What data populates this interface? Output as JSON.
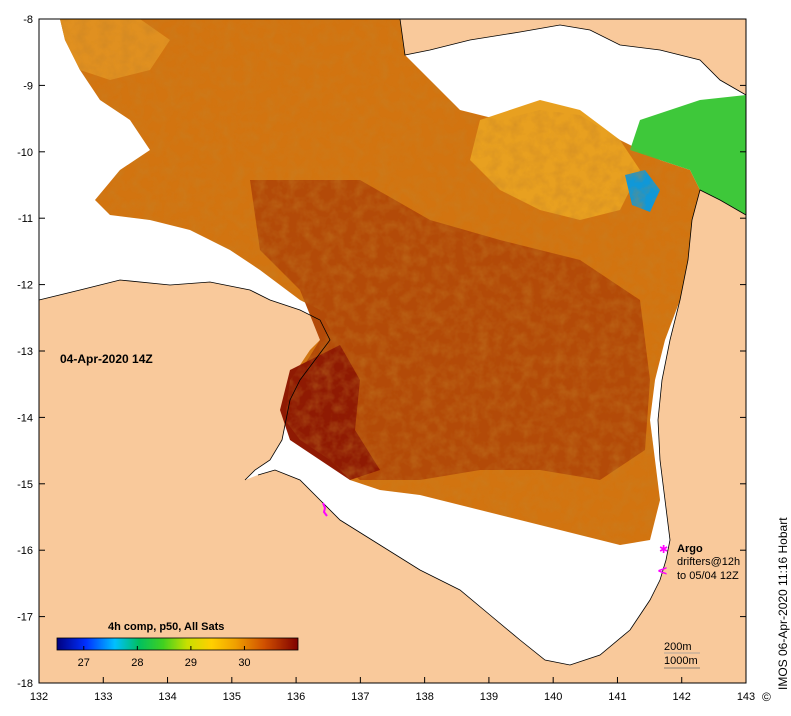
{
  "map": {
    "timestamp": "04-Apr-2020 14Z",
    "credit": "IMOS 06-Apr-2020 11:16 Hobart",
    "copyright": "©",
    "colors": {
      "land": "#f9c99b",
      "nodata": "#ffffff",
      "sst_low": "#00008b",
      "sst_mid": "#22b14c",
      "sst_high": "#7a0000"
    },
    "lon_ticks": [
      "132",
      "133",
      "134",
      "135",
      "136",
      "137",
      "138",
      "139",
      "140",
      "141",
      "142",
      "143"
    ],
    "lat_ticks": [
      "-8",
      "-9",
      "-10",
      "-11",
      "-12",
      "-13",
      "-14",
      "-15",
      "-16",
      "-17",
      "-18"
    ],
    "lon_range": [
      132,
      143
    ],
    "lat_range": [
      -18,
      -8
    ],
    "colorbar": {
      "title": "4h comp, p50, All Sats",
      "ticks": [
        "27",
        "28",
        "29",
        "30"
      ],
      "range": [
        26.5,
        31
      ]
    },
    "legend": {
      "argo_label": "Argo",
      "drifters_label": "drifters@12h",
      "drifters_sub": "to 05/04 12Z",
      "contour_200": "200m",
      "contour_1000": "1000m"
    }
  }
}
